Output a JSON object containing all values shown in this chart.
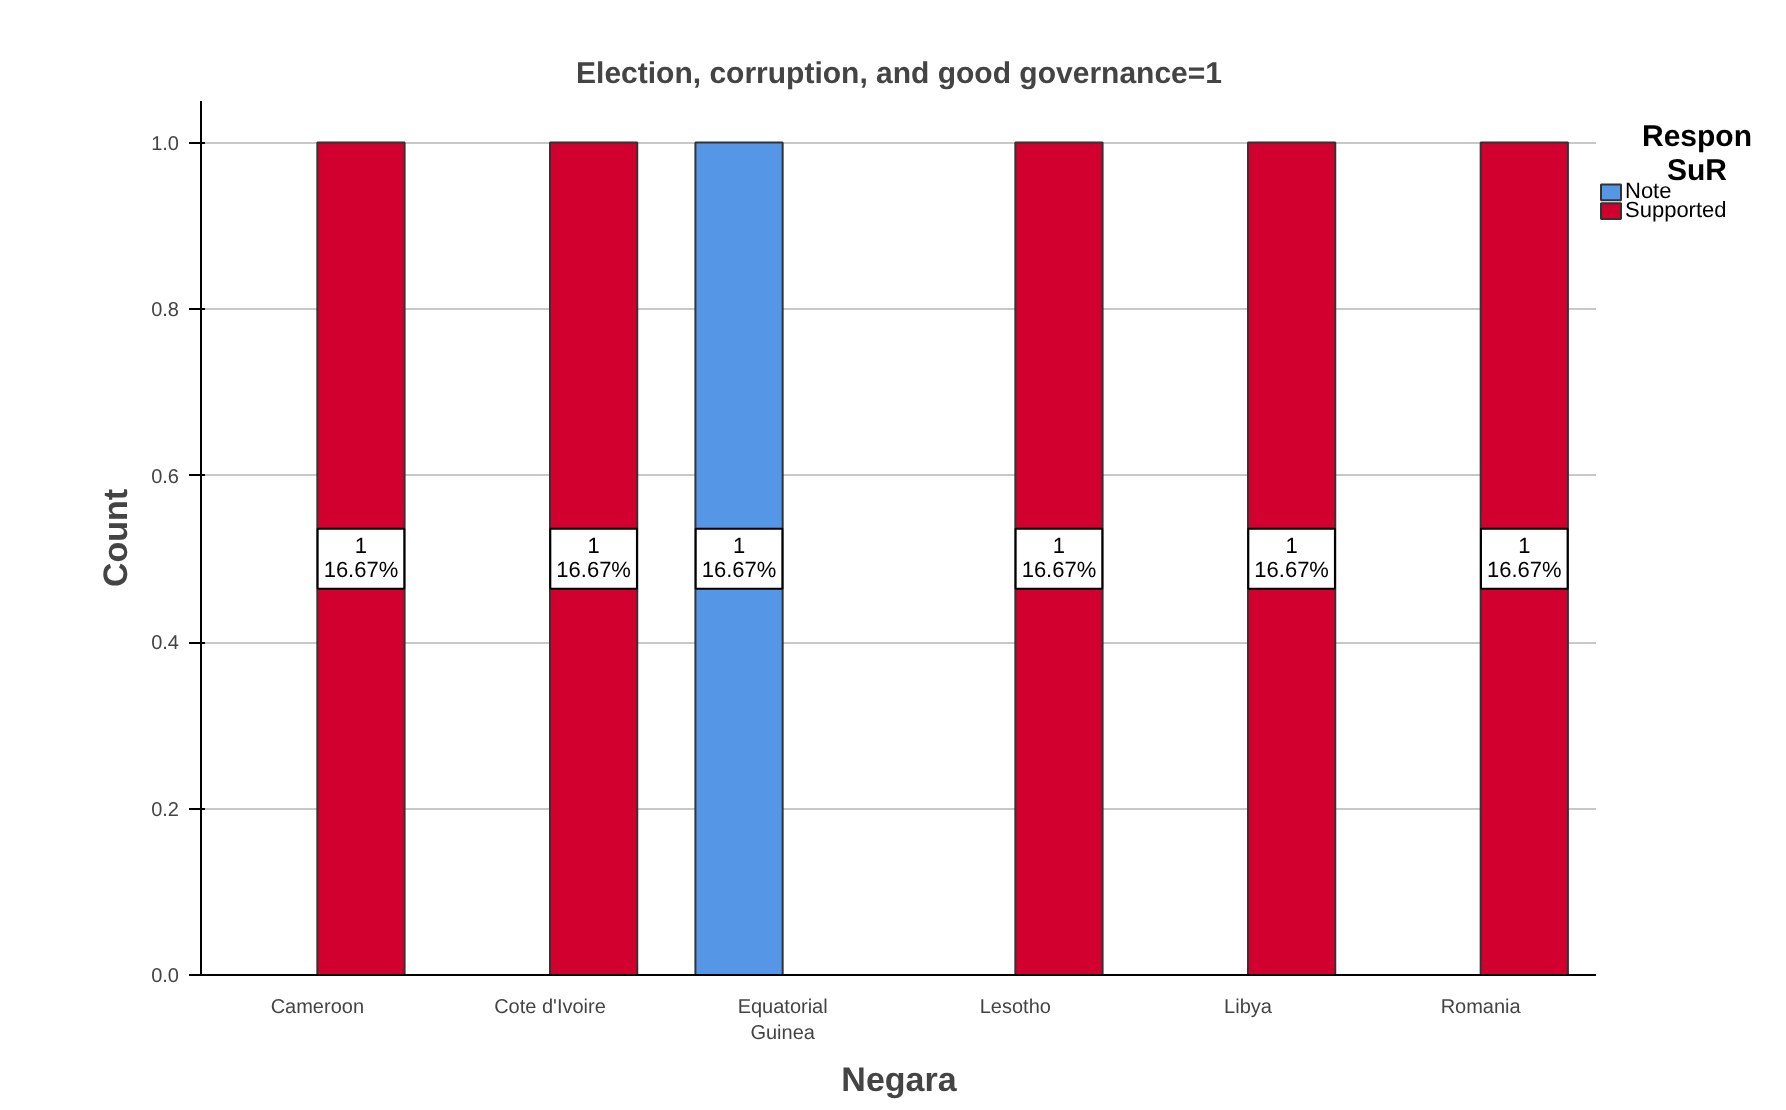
{
  "chart_data": {
    "type": "bar",
    "title": "Election, corruption, and good governance=1",
    "xlabel": "Negara",
    "ylabel": "Count",
    "legend_title": "Respon SuR",
    "categories": [
      "Cameroon",
      "Cote d'Ivoire",
      "Equatorial Guinea",
      "Lesotho",
      "Libya",
      "Romania"
    ],
    "series": [
      {
        "name": "Note",
        "color": "#5596e6",
        "values": [
          null,
          null,
          1,
          null,
          null,
          null
        ],
        "value_labels": [
          null,
          null,
          "1\n16.67%",
          null,
          null,
          null
        ]
      },
      {
        "name": "Supported",
        "color": "#d2002f",
        "values": [
          1,
          1,
          null,
          1,
          1,
          1
        ],
        "value_labels": [
          "1\n16.67%",
          "1\n16.67%",
          null,
          "1\n16.67%",
          "1\n16.67%",
          "1\n16.67%"
        ]
      }
    ],
    "ylim": [
      0,
      1.05
    ],
    "yticks": [
      {
        "value": 0,
        "label": "0.0"
      },
      {
        "value": 0.2,
        "label": "0.2"
      },
      {
        "value": 0.4,
        "label": "0.4"
      },
      {
        "value": 0.6,
        "label": "0.6"
      },
      {
        "value": 0.8,
        "label": "0.8"
      },
      {
        "value": 1,
        "label": "1.0"
      }
    ],
    "grid": "y",
    "legend": "top right"
  }
}
